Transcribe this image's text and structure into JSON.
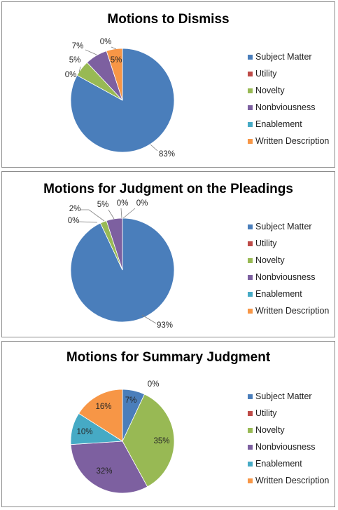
{
  "colors": {
    "Subject Matter": "#4a7ebb",
    "Utility": "#be4b48",
    "Novelty": "#98b954",
    "Nonbviousness": "#7d60a0",
    "Enablement": "#46aac5",
    "Written Description": "#f79646"
  },
  "chart_data": [
    {
      "type": "pie",
      "title": "Motions to Dismiss",
      "categories": [
        "Subject Matter",
        "Utility",
        "Novelty",
        "Nonbviousness",
        "Enablement",
        "Written Description"
      ],
      "values": [
        83,
        0,
        5,
        7,
        0,
        5
      ],
      "labels": [
        "83%",
        "0%",
        "5%",
        "7%",
        "0%",
        "5%"
      ],
      "legend_position": "right"
    },
    {
      "type": "pie",
      "title": "Motions for Judgment on the Pleadings",
      "categories": [
        "Subject Matter",
        "Utility",
        "Novelty",
        "Nonbviousness",
        "Enablement",
        "Written Description"
      ],
      "values": [
        93,
        0,
        2,
        5,
        0,
        0
      ],
      "labels": [
        "93%",
        "0%",
        "2%",
        "5%",
        "0%",
        "0%"
      ],
      "legend_position": "right"
    },
    {
      "type": "pie",
      "title": "Motions for Summary Judgment",
      "categories": [
        "Subject Matter",
        "Utility",
        "Novelty",
        "Nonbviousness",
        "Enablement",
        "Written Description"
      ],
      "values": [
        7,
        0,
        35,
        32,
        10,
        16
      ],
      "labels": [
        "7%",
        "0%",
        "35%",
        "32%",
        "10%",
        "16%"
      ],
      "legend_position": "right"
    }
  ]
}
